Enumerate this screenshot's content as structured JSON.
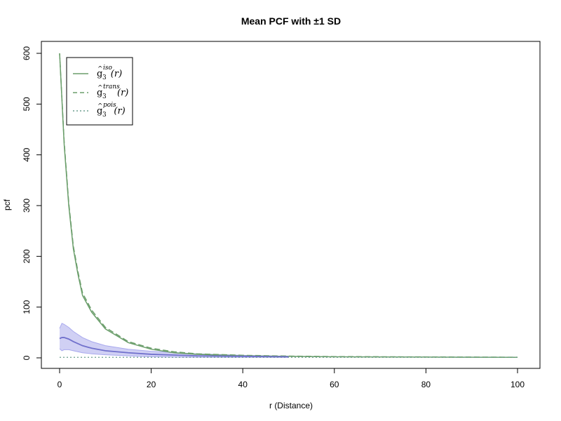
{
  "chart_data": {
    "type": "line",
    "title": "Mean PCF with ±1 SD",
    "xlabel": "r (Distance)",
    "ylabel": "pcf",
    "xlim": [
      0,
      100
    ],
    "ylim": [
      0,
      600
    ],
    "x_ticks": [
      0,
      20,
      40,
      60,
      80,
      100
    ],
    "y_ticks": [
      0,
      100,
      200,
      300,
      400,
      500,
      600
    ],
    "grid": false,
    "legend_position": "top-left",
    "legend": [
      {
        "base": "g",
        "sub": "3",
        "sup": "iso",
        "arg": "(r)",
        "style": "solid"
      },
      {
        "base": "g",
        "sub": "3",
        "sup": "trans",
        "arg": "(r)",
        "style": "dashed"
      },
      {
        "base": "g",
        "sub": "3",
        "sup": "pois",
        "arg": "(r)",
        "style": "dotted"
      }
    ],
    "colors": {
      "iso": "#6b9e6b",
      "trans": "#6b9e6b",
      "pois": "#6b9e8e",
      "mean": "#7070cc",
      "band_fill": "#d0d0f4",
      "band_edge": "#a9a9ee"
    },
    "series": [
      {
        "key": "iso",
        "x": [
          0,
          1,
          2,
          3,
          4,
          5,
          7,
          10,
          15,
          20,
          25,
          30,
          40,
          50,
          60,
          80,
          100
        ],
        "values": [
          600,
          420,
          300,
          215,
          165,
          123,
          90,
          57,
          30,
          17,
          10,
          7,
          4,
          3,
          2,
          1.5,
          1
        ]
      },
      {
        "key": "trans",
        "x": [
          0,
          1,
          2,
          3,
          4,
          5,
          7,
          10,
          15,
          20,
          25,
          30,
          40,
          50,
          60,
          80,
          100
        ],
        "values": [
          600,
          425,
          305,
          220,
          170,
          128,
          94,
          60,
          32,
          19,
          12,
          8,
          5,
          3.5,
          2.5,
          1.8,
          1.2
        ]
      },
      {
        "key": "pois",
        "x": [
          0,
          100
        ],
        "values": [
          1,
          1
        ]
      },
      {
        "key": "mean",
        "x": [
          0,
          0.5,
          1,
          2,
          3,
          5,
          7,
          10,
          15,
          20,
          30,
          40,
          50
        ],
        "values": [
          38,
          40,
          40,
          37,
          32,
          24,
          19,
          14,
          10,
          7,
          4,
          3,
          2
        ]
      }
    ],
    "sd_band": {
      "x": [
        0,
        0.5,
        1,
        2,
        3,
        5,
        7,
        10,
        15,
        20,
        30,
        40,
        50
      ],
      "upper": [
        58,
        68,
        66,
        60,
        52,
        40,
        32,
        24,
        17,
        13,
        8,
        5,
        3
      ],
      "lower": [
        18,
        14,
        16,
        16,
        14,
        10,
        8,
        6,
        4,
        2,
        1,
        1,
        1
      ]
    }
  }
}
